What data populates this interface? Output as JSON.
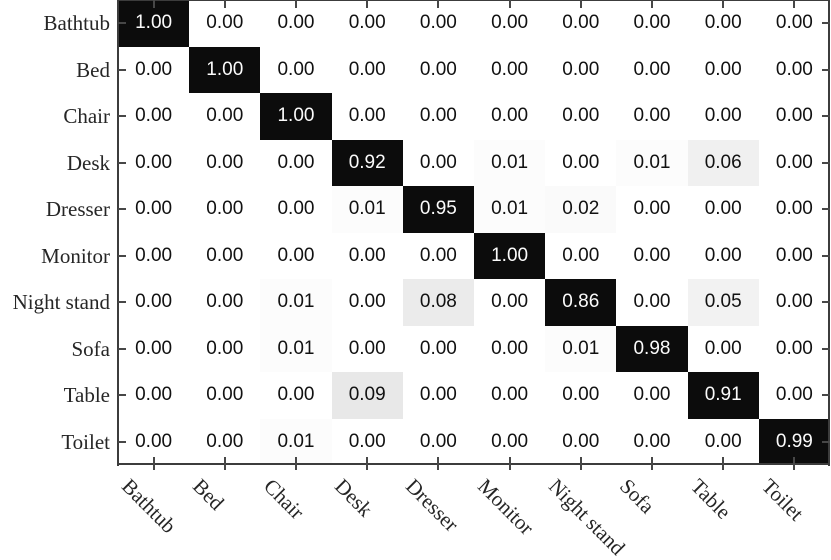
{
  "chart_data": {
    "type": "heatmap",
    "title": "",
    "xlabel": "",
    "ylabel": "",
    "categories": [
      "Bathtub",
      "Bed",
      "Chair",
      "Desk",
      "Dresser",
      "Monitor",
      "Night stand",
      "Sofa",
      "Table",
      "Toilet"
    ],
    "matrix": [
      [
        1.0,
        0.0,
        0.0,
        0.0,
        0.0,
        0.0,
        0.0,
        0.0,
        0.0,
        0.0
      ],
      [
        0.0,
        1.0,
        0.0,
        0.0,
        0.0,
        0.0,
        0.0,
        0.0,
        0.0,
        0.0
      ],
      [
        0.0,
        0.0,
        1.0,
        0.0,
        0.0,
        0.0,
        0.0,
        0.0,
        0.0,
        0.0
      ],
      [
        0.0,
        0.0,
        0.0,
        0.92,
        0.0,
        0.01,
        0.0,
        0.01,
        0.06,
        0.0
      ],
      [
        0.0,
        0.0,
        0.0,
        0.01,
        0.95,
        0.01,
        0.02,
        0.0,
        0.0,
        0.0
      ],
      [
        0.0,
        0.0,
        0.0,
        0.0,
        0.0,
        1.0,
        0.0,
        0.0,
        0.0,
        0.0
      ],
      [
        0.0,
        0.0,
        0.01,
        0.0,
        0.08,
        0.0,
        0.86,
        0.0,
        0.05,
        0.0
      ],
      [
        0.0,
        0.0,
        0.01,
        0.0,
        0.0,
        0.0,
        0.01,
        0.98,
        0.0,
        0.0
      ],
      [
        0.0,
        0.0,
        0.0,
        0.09,
        0.0,
        0.0,
        0.0,
        0.0,
        0.91,
        0.0
      ],
      [
        0.0,
        0.0,
        0.01,
        0.0,
        0.0,
        0.0,
        0.0,
        0.0,
        0.0,
        0.99
      ]
    ],
    "value_decimals": 2,
    "colormap": "greys (0 = white, 1 = black)",
    "legend_position": "none",
    "grid": false,
    "colors": {
      "cell_high": "#0c0c0c",
      "cell_low": "#ffffff",
      "text_on_dark": "#fbfbfb",
      "text_on_light": "#111111",
      "axis": "#3c3c3c",
      "tick": "#474747",
      "label": "#262626"
    }
  }
}
